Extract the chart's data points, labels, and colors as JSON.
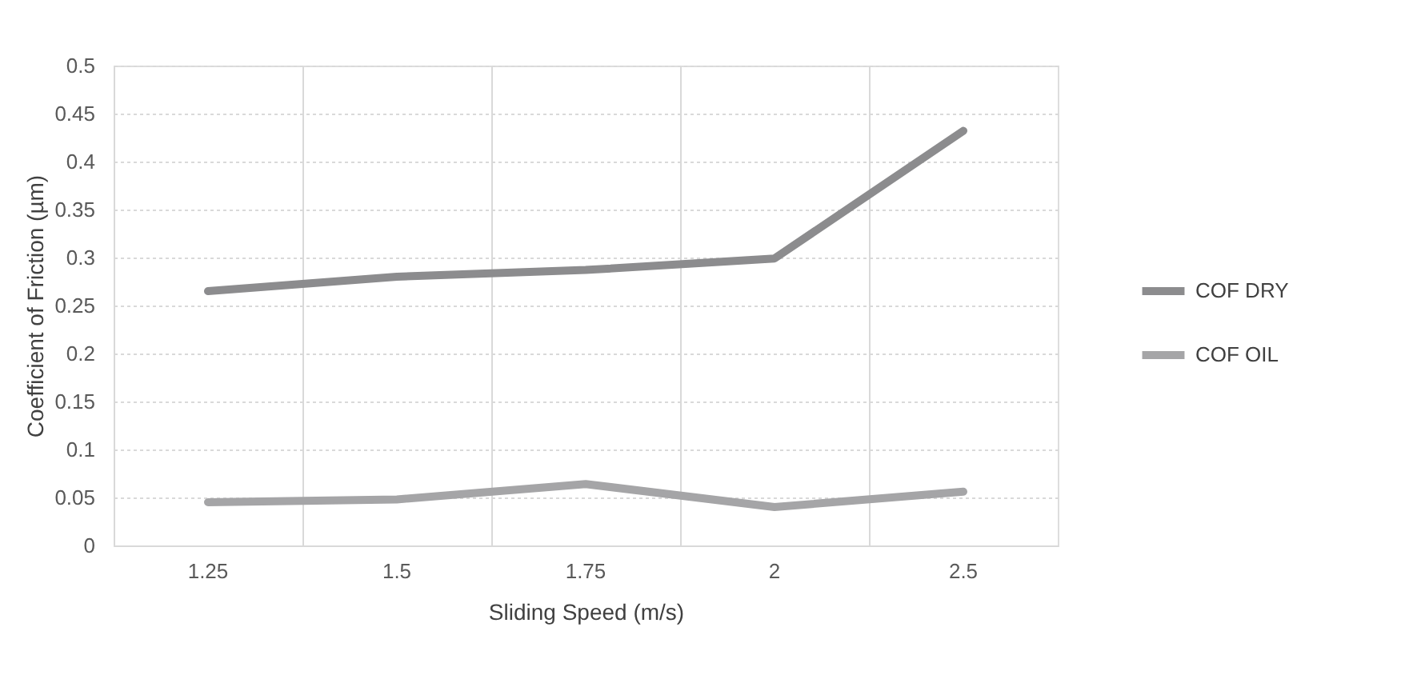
{
  "chart_data": {
    "type": "line",
    "xlabel": "Sliding Speed (m/s)",
    "ylabel": "Coefficient of Friction (µm)",
    "categories": [
      "1.25",
      "1.5",
      "1.75",
      "2",
      "2.5"
    ],
    "series": [
      {
        "name": "COF DRY",
        "color": "#8c8c8e",
        "values": [
          0.265,
          0.28,
          0.287,
          0.299,
          0.432
        ]
      },
      {
        "name": "COF OIL",
        "color": "#a5a5a7",
        "values": [
          0.045,
          0.048,
          0.064,
          0.04,
          0.056
        ]
      }
    ],
    "ylim": [
      0,
      0.5
    ],
    "yticks": [
      0,
      0.05,
      0.1,
      0.15,
      0.2,
      0.25,
      0.3,
      0.35,
      0.4,
      0.45,
      0.5
    ],
    "grid": true,
    "legend": "right",
    "marker": "none",
    "line_style": "solid"
  }
}
